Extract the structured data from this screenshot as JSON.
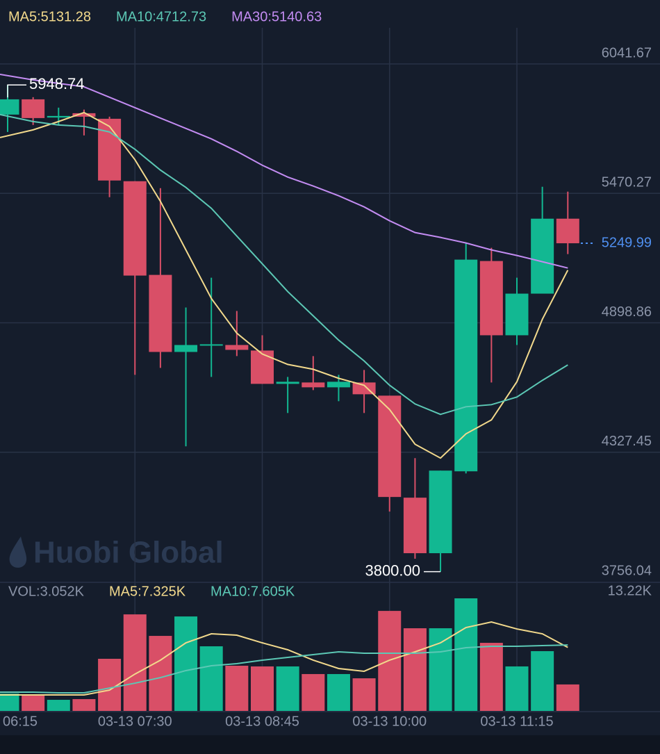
{
  "chart_data": {
    "type": "candlestick",
    "watermark": "Huobi Global",
    "categories": [
      "06:15",
      null,
      null,
      null,
      null,
      "03-13 07:30",
      null,
      null,
      null,
      null,
      "03-13 08:45",
      null,
      null,
      null,
      null,
      "03-13 10:00",
      null,
      null,
      null,
      null,
      "03-13 11:15",
      null,
      null
    ],
    "open": [
      5818.0,
      5885.4,
      5805.0,
      5824.2,
      5799.6,
      5523.9,
      5110.3,
      4770.2,
      4798.0,
      4800.8,
      4776.4,
      4629.3,
      4635.4,
      4614.0,
      4635.4,
      4577.2,
      4126.8,
      3881.7,
      4243.2,
      5171.6,
      4843.8,
      5027.6,
      5358.5
    ],
    "high": [
      5948.74,
      5895.0,
      5848.7,
      5840.0,
      5808.8,
      5523.9,
      5493.3,
      4966.3,
      5098.0,
      4951.0,
      4843.8,
      4659.9,
      4751.8,
      4669.1,
      4690.6,
      4577.2,
      4301.4,
      4246.3,
      5251.2,
      5229.8,
      5098.0,
      5499.4,
      5478.0
    ],
    "low": [
      5741.4,
      5772.1,
      5772.1,
      5726.1,
      5453.4,
      4669.1,
      4699.8,
      4353.5,
      4659.9,
      4751.8,
      4629.3,
      4500.6,
      4601.7,
      4552.7,
      4500.6,
      4065.5,
      3857.2,
      3800.0,
      4234.0,
      4635.4,
      4800.8,
      5027.6,
      5202.2
    ],
    "close": [
      5885.4,
      5802.7,
      5812.0,
      5808.8,
      5527.0,
      5107.3,
      4770.2,
      4800.8,
      4804.0,
      4779.4,
      4629.3,
      4638.5,
      4614.0,
      4638.5,
      4583.3,
      4129.9,
      3881.7,
      4246.3,
      5177.7,
      4843.8,
      5027.6,
      5358.5,
      5249.99
    ],
    "up_color": "#12b892",
    "down_color": "#d94f67",
    "ylim": [
      3756.04,
      6041.67
    ],
    "yticks": [
      3756.04,
      4327.45,
      4898.86,
      5470.27,
      6041.67
    ],
    "grid": true,
    "series": [
      {
        "name": "MA5:5131.28",
        "color": "#f2d98c",
        "values": [
          5716.9,
          5750.6,
          5787.4,
          5827.2,
          5766.0,
          5618.9,
          5435.1,
          5220.6,
          5006.2,
          4853.0,
          4761.1,
          4715.1,
          4693.7,
          4653.8,
          4623.2,
          4516.0,
          4362.8,
          4301.5,
          4408.7,
          4470.0,
          4638.5,
          4914.3,
          5131.28
        ]
      },
      {
        "name": "MA10:4712.73",
        "color": "#5cc8b5",
        "values": [
          5818.0,
          5787.4,
          5772.1,
          5766.0,
          5741.5,
          5664.9,
          5573.0,
          5496.4,
          5404.5,
          5281.9,
          5159.4,
          5036.8,
          4929.6,
          4822.3,
          4730.4,
          4623.2,
          4540.5,
          4494.5,
          4528.2,
          4537.4,
          4571.1,
          4644.7,
          4712.73
        ]
      },
      {
        "name": "MA30:5140.63",
        "color": "#c38cf2",
        "values": [
          5995.7,
          5971.2,
          5955.9,
          5940.6,
          5894.6,
          5848.7,
          5802.7,
          5756.8,
          5710.8,
          5655.7,
          5594.4,
          5542.3,
          5502.5,
          5459.6,
          5410.6,
          5349.3,
          5297.2,
          5275.8,
          5251.3,
          5220.6,
          5196.1,
          5168.5,
          5140.63
        ]
      }
    ],
    "last_price": 5249.99,
    "max_label": "5948.74",
    "min_label": "3800.00",
    "volume": {
      "name": "VOL:3.052K",
      "values": [
        2.0,
        1.84,
        1.28,
        1.36,
        6.01,
        11.13,
        8.65,
        10.89,
        7.45,
        5.21,
        5.13,
        5.13,
        4.25,
        4.25,
        3.76,
        11.53,
        9.53,
        9.53,
        12.98,
        7.85,
        5.13,
        6.89,
        3.052
      ],
      "ylim": [
        0,
        13.22
      ],
      "yticks": [
        {
          "value": 13.22,
          "label": "13.22K"
        }
      ],
      "series": [
        {
          "name": "MA5:7.325K",
          "color": "#f2d98c",
          "values": [
            1.84,
            1.84,
            1.84,
            1.84,
            2.4,
            4.25,
            5.85,
            7.85,
            8.89,
            8.73,
            7.85,
            7.05,
            5.85,
            4.89,
            4.57,
            5.85,
            6.81,
            7.85,
            9.61,
            10.25,
            9.45,
            8.89,
            7.325
          ]
        },
        {
          "name": "MA10:7.605K",
          "color": "#5cc8b5",
          "values": [
            2.16,
            2.16,
            2.08,
            2.08,
            2.64,
            3.2,
            3.84,
            4.65,
            5.21,
            5.45,
            5.85,
            6.17,
            6.49,
            6.81,
            6.65,
            6.65,
            6.65,
            6.81,
            7.29,
            7.45,
            7.45,
            7.53,
            7.605
          ]
        }
      ]
    }
  }
}
